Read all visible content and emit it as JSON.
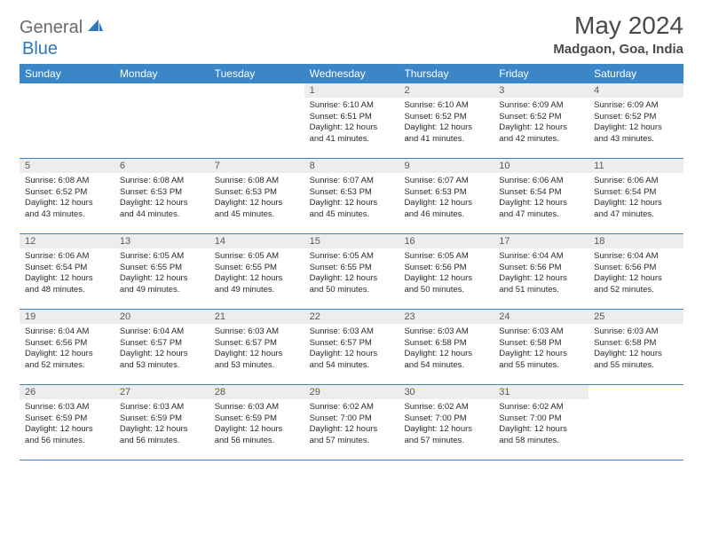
{
  "brand": {
    "general": "General",
    "blue": "Blue"
  },
  "title": "May 2024",
  "location": "Madgaon, Goa, India",
  "colors": {
    "header_bg": "#3b86c6",
    "daynum_bg": "#ebedef",
    "text": "#333333",
    "title_text": "#4a4a4a",
    "logo_gray": "#6b6b6b",
    "logo_blue": "#2f78bd",
    "border": "#3b86c6"
  },
  "day_labels": [
    "Sunday",
    "Monday",
    "Tuesday",
    "Wednesday",
    "Thursday",
    "Friday",
    "Saturday"
  ],
  "weeks": [
    [
      {
        "n": "",
        "sr": "",
        "ss": "",
        "dl": ""
      },
      {
        "n": "",
        "sr": "",
        "ss": "",
        "dl": ""
      },
      {
        "n": "",
        "sr": "",
        "ss": "",
        "dl": ""
      },
      {
        "n": "1",
        "sr": "6:10 AM",
        "ss": "6:51 PM",
        "dl": "12 hours and 41 minutes."
      },
      {
        "n": "2",
        "sr": "6:10 AM",
        "ss": "6:52 PM",
        "dl": "12 hours and 41 minutes."
      },
      {
        "n": "3",
        "sr": "6:09 AM",
        "ss": "6:52 PM",
        "dl": "12 hours and 42 minutes."
      },
      {
        "n": "4",
        "sr": "6:09 AM",
        "ss": "6:52 PM",
        "dl": "12 hours and 43 minutes."
      }
    ],
    [
      {
        "n": "5",
        "sr": "6:08 AM",
        "ss": "6:52 PM",
        "dl": "12 hours and 43 minutes."
      },
      {
        "n": "6",
        "sr": "6:08 AM",
        "ss": "6:53 PM",
        "dl": "12 hours and 44 minutes."
      },
      {
        "n": "7",
        "sr": "6:08 AM",
        "ss": "6:53 PM",
        "dl": "12 hours and 45 minutes."
      },
      {
        "n": "8",
        "sr": "6:07 AM",
        "ss": "6:53 PM",
        "dl": "12 hours and 45 minutes."
      },
      {
        "n": "9",
        "sr": "6:07 AM",
        "ss": "6:53 PM",
        "dl": "12 hours and 46 minutes."
      },
      {
        "n": "10",
        "sr": "6:06 AM",
        "ss": "6:54 PM",
        "dl": "12 hours and 47 minutes."
      },
      {
        "n": "11",
        "sr": "6:06 AM",
        "ss": "6:54 PM",
        "dl": "12 hours and 47 minutes."
      }
    ],
    [
      {
        "n": "12",
        "sr": "6:06 AM",
        "ss": "6:54 PM",
        "dl": "12 hours and 48 minutes."
      },
      {
        "n": "13",
        "sr": "6:05 AM",
        "ss": "6:55 PM",
        "dl": "12 hours and 49 minutes."
      },
      {
        "n": "14",
        "sr": "6:05 AM",
        "ss": "6:55 PM",
        "dl": "12 hours and 49 minutes."
      },
      {
        "n": "15",
        "sr": "6:05 AM",
        "ss": "6:55 PM",
        "dl": "12 hours and 50 minutes."
      },
      {
        "n": "16",
        "sr": "6:05 AM",
        "ss": "6:56 PM",
        "dl": "12 hours and 50 minutes."
      },
      {
        "n": "17",
        "sr": "6:04 AM",
        "ss": "6:56 PM",
        "dl": "12 hours and 51 minutes."
      },
      {
        "n": "18",
        "sr": "6:04 AM",
        "ss": "6:56 PM",
        "dl": "12 hours and 52 minutes."
      }
    ],
    [
      {
        "n": "19",
        "sr": "6:04 AM",
        "ss": "6:56 PM",
        "dl": "12 hours and 52 minutes."
      },
      {
        "n": "20",
        "sr": "6:04 AM",
        "ss": "6:57 PM",
        "dl": "12 hours and 53 minutes."
      },
      {
        "n": "21",
        "sr": "6:03 AM",
        "ss": "6:57 PM",
        "dl": "12 hours and 53 minutes."
      },
      {
        "n": "22",
        "sr": "6:03 AM",
        "ss": "6:57 PM",
        "dl": "12 hours and 54 minutes."
      },
      {
        "n": "23",
        "sr": "6:03 AM",
        "ss": "6:58 PM",
        "dl": "12 hours and 54 minutes."
      },
      {
        "n": "24",
        "sr": "6:03 AM",
        "ss": "6:58 PM",
        "dl": "12 hours and 55 minutes."
      },
      {
        "n": "25",
        "sr": "6:03 AM",
        "ss": "6:58 PM",
        "dl": "12 hours and 55 minutes."
      }
    ],
    [
      {
        "n": "26",
        "sr": "6:03 AM",
        "ss": "6:59 PM",
        "dl": "12 hours and 56 minutes."
      },
      {
        "n": "27",
        "sr": "6:03 AM",
        "ss": "6:59 PM",
        "dl": "12 hours and 56 minutes."
      },
      {
        "n": "28",
        "sr": "6:03 AM",
        "ss": "6:59 PM",
        "dl": "12 hours and 56 minutes."
      },
      {
        "n": "29",
        "sr": "6:02 AM",
        "ss": "7:00 PM",
        "dl": "12 hours and 57 minutes."
      },
      {
        "n": "30",
        "sr": "6:02 AM",
        "ss": "7:00 PM",
        "dl": "12 hours and 57 minutes."
      },
      {
        "n": "31",
        "sr": "6:02 AM",
        "ss": "7:00 PM",
        "dl": "12 hours and 58 minutes."
      },
      {
        "n": "",
        "sr": "",
        "ss": "",
        "dl": ""
      }
    ]
  ],
  "labels": {
    "sunrise": "Sunrise:",
    "sunset": "Sunset:",
    "daylight": "Daylight:"
  }
}
